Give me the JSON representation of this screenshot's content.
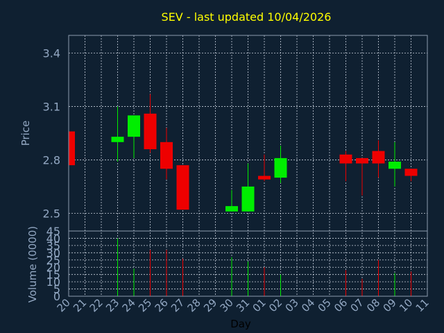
{
  "chart_data": {
    "type": "candlestick",
    "title": "SEV - last updated 10/04/2026",
    "xlabel": "Day",
    "price_axis": {
      "label": "Price",
      "ylim": [
        2.4,
        3.5
      ],
      "ticks": [
        2.5,
        2.8,
        3.1,
        3.4
      ]
    },
    "volume_axis": {
      "label": "Volume (0000)",
      "ylim": [
        0,
        45
      ],
      "ticks": [
        0,
        5,
        10,
        15,
        20,
        25,
        30,
        35,
        40,
        45
      ]
    },
    "x_labels": [
      "20",
      "21",
      "22",
      "23",
      "24",
      "25",
      "26",
      "27",
      "28",
      "29",
      "30",
      "31",
      "01",
      "02",
      "03",
      "04",
      "05",
      "06",
      "07",
      "08",
      "09",
      "10",
      "11"
    ],
    "candles": [
      {
        "day": "20",
        "open": 2.96,
        "high": 2.96,
        "low": 2.77,
        "close": 2.77,
        "volume": 0
      },
      {
        "day": "23",
        "open": 2.9,
        "high": 3.1,
        "low": 2.79,
        "close": 2.93,
        "volume": 40
      },
      {
        "day": "24",
        "open": 2.93,
        "high": 3.05,
        "low": 2.81,
        "close": 3.05,
        "volume": 19
      },
      {
        "day": "25",
        "open": 3.06,
        "high": 3.17,
        "low": 2.84,
        "close": 2.86,
        "volume": 32
      },
      {
        "day": "26",
        "open": 2.9,
        "high": 2.98,
        "low": 2.69,
        "close": 2.75,
        "volume": 32
      },
      {
        "day": "27",
        "open": 2.77,
        "high": 2.77,
        "low": 2.52,
        "close": 2.52,
        "volume": 26
      },
      {
        "day": "30",
        "open": 2.51,
        "high": 2.63,
        "low": 2.51,
        "close": 2.54,
        "volume": 27
      },
      {
        "day": "31",
        "open": 2.51,
        "high": 2.78,
        "low": 2.51,
        "close": 2.65,
        "volume": 24
      },
      {
        "day": "01",
        "open": 2.71,
        "high": 2.83,
        "low": 2.68,
        "close": 2.69,
        "volume": 20
      },
      {
        "day": "02",
        "open": 2.7,
        "high": 2.88,
        "low": 2.67,
        "close": 2.81,
        "volume": 15
      },
      {
        "day": "06",
        "open": 2.83,
        "high": 2.85,
        "low": 2.68,
        "close": 2.78,
        "volume": 18
      },
      {
        "day": "07",
        "open": 2.81,
        "high": 2.81,
        "low": 2.6,
        "close": 2.78,
        "volume": 12
      },
      {
        "day": "08",
        "open": 2.85,
        "high": 2.91,
        "low": 2.7,
        "close": 2.78,
        "volume": 25
      },
      {
        "day": "09",
        "open": 2.75,
        "high": 2.9,
        "low": 2.65,
        "close": 2.79,
        "volume": 16
      },
      {
        "day": "10",
        "open": 2.75,
        "high": 2.75,
        "low": 2.68,
        "close": 2.71,
        "volume": 17
      }
    ],
    "grid": true,
    "colors": {
      "background": "#0f2031",
      "text": "#93a8c3",
      "title": "#ffff00",
      "grid": "#c8d0dc",
      "axis": "#8c9cb0",
      "up": "#00ee00",
      "down": "#ee0000"
    }
  }
}
